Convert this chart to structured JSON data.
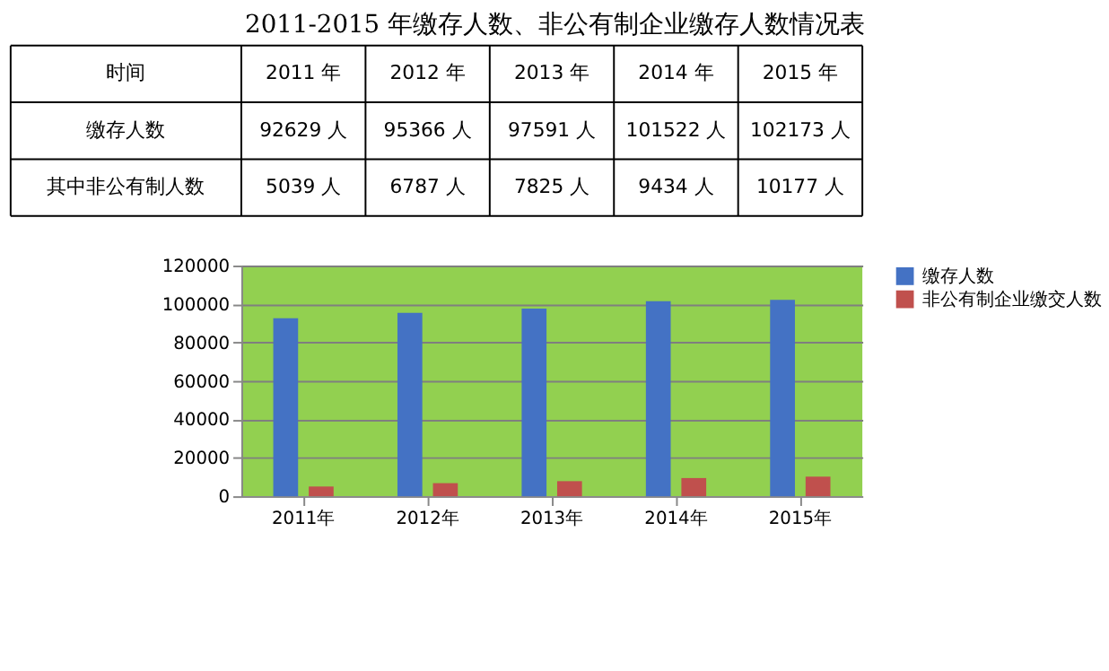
{
  "chart_data": {
    "type": "bar",
    "title": "2011-2015 年缴存人数、非公有制企业缴存人数情况表",
    "categories": [
      "2011年",
      "2012年",
      "2013年",
      "2014年",
      "2015年"
    ],
    "series": [
      {
        "name": "缴存人数",
        "color": "#4472c4",
        "values": [
          92629,
          95366,
          97591,
          101522,
          102173
        ],
        "value_labels": [
          "92629 人",
          "95366 人",
          "97591 人",
          "101522 人",
          "102173 人"
        ]
      },
      {
        "name": "非公有制企业缴交人数",
        "color": "#c0504d",
        "values": [
          5039,
          6787,
          7825,
          9434,
          10177
        ],
        "value_labels": [
          "5039 人",
          "6787 人",
          "7825 人",
          "9434 人",
          "10177 人"
        ]
      }
    ],
    "annotations": [
      "时间",
      "2011 年",
      "2012 年",
      "2013 年",
      "2014 年",
      "2015 年",
      "缴存人数",
      "其中非公有制人数"
    ],
    "ylim": [
      0,
      120000
    ],
    "yticks": [
      0,
      20000,
      40000,
      60000,
      80000,
      100000,
      120000
    ],
    "grid": "y",
    "legend": "right"
  }
}
